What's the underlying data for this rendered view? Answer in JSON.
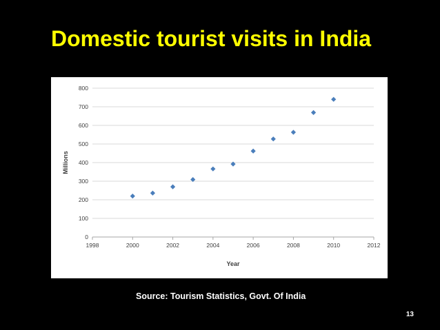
{
  "slide": {
    "title": "Domestic tourist visits in India",
    "source": "Source: Tourism Statistics, Govt. Of India",
    "page_number": "13"
  },
  "colors": {
    "background": "#000000",
    "title": "#ffff00",
    "text": "#ffffff",
    "marker": "#4a7ebb",
    "grid": "#d9d9d9",
    "axis": "#a6a6a6"
  },
  "chart_data": {
    "type": "scatter",
    "title": "",
    "xlabel": "Year",
    "ylabel": "Millions",
    "xlim": [
      1998,
      2012
    ],
    "ylim": [
      0,
      800
    ],
    "x_ticks": [
      1998,
      2000,
      2002,
      2004,
      2006,
      2008,
      2010,
      2012
    ],
    "y_ticks": [
      0,
      100,
      200,
      300,
      400,
      500,
      600,
      700,
      800
    ],
    "grid": "horizontal",
    "legend": "none",
    "series": [
      {
        "x": [
          2000,
          2001,
          2002,
          2003,
          2004,
          2005,
          2006,
          2007,
          2008,
          2009,
          2010
        ],
        "y": [
          220,
          236,
          270,
          309,
          366,
          392,
          462,
          527,
          563,
          669,
          740
        ]
      }
    ]
  }
}
